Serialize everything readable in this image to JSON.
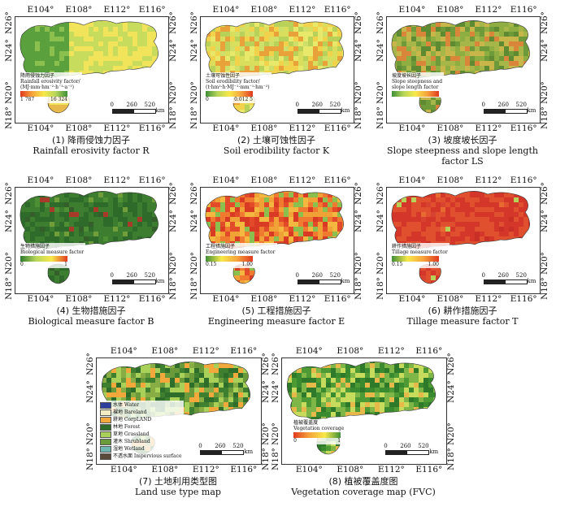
{
  "ticks": {
    "lon": [
      "E104°",
      "E108°",
      "E112°",
      "E116°"
    ],
    "lat": [
      "N26°",
      "N24°",
      "N20°",
      "N18°"
    ]
  },
  "scalebar": {
    "labels": [
      "0",
      "260",
      "520"
    ],
    "unit": "km"
  },
  "panels": [
    {
      "id": "r",
      "caption_cn": "(1) 降雨侵蚀力因子",
      "caption_en": "Rainfall erosivity factor R",
      "legend": {
        "title_cn": "降雨侵蚀力因子",
        "title_en": "Rainfall erosivity factor/",
        "unit": "(MJ·mm·hm⁻²·h⁻¹·a⁻¹)",
        "min": "1 787",
        "max": "16 324"
      },
      "gradient": [
        "#e03a1f",
        "#f6a33c",
        "#f7e84a",
        "#b7d65a",
        "#3f8f38"
      ],
      "fill": "green-yellow"
    },
    {
      "id": "k",
      "caption_cn": "(2) 土壤可蚀性因子",
      "caption_en": "Soil erodibility factor K",
      "legend": {
        "title_cn": "土壤可蚀性因子",
        "title_en": "Soil erodibility factor/",
        "unit": "(t·hm²·h·MJ⁻¹·mm⁻¹·hm⁻²)",
        "min": "0",
        "max": "0.012 5"
      },
      "gradient": [
        "#3f8f38",
        "#b7d65a",
        "#f7e84a",
        "#f6a33c",
        "#e03a1f"
      ],
      "fill": "yellow"
    },
    {
      "id": "ls",
      "caption_cn": "(3) 坡度坡长因子",
      "caption_en": "Slope steepness and slope length factor LS",
      "legend": {
        "title_cn": "坡度坡长因子",
        "title_en": "Slope steepness and",
        "unit": "slope length factor",
        "min": "",
        "max": ""
      },
      "gradient": [
        "#3f8f38",
        "#b7d65a",
        "#f7e84a",
        "#f6a33c",
        "#e03a1f"
      ],
      "fill": "olive"
    },
    {
      "id": "b",
      "caption_cn": "(4) 生物措施因子",
      "caption_en": "Biological measure factor B",
      "legend": {
        "title_cn": "生物措施因子",
        "title_en": "Biological measure factor",
        "unit": "",
        "min": "0",
        "max": "1"
      },
      "gradient": [
        "#2d7a2d",
        "#b7d65a",
        "#f7e84a",
        "#e03a1f"
      ],
      "fill": "darkgreen"
    },
    {
      "id": "e",
      "caption_cn": "(5) 工程措施因子",
      "caption_en": "Engineering measure factor E",
      "legend": {
        "title_cn": "工程措施因子",
        "title_en": "Engineering measure factor",
        "unit": "",
        "min": "0.15",
        "max": "1.00"
      },
      "gradient": [
        "#3f8f38",
        "#f7e84a",
        "#f6a33c",
        "#e03a1f"
      ],
      "fill": "red-mixed"
    },
    {
      "id": "t",
      "caption_cn": "(6) 耕作措施因子",
      "caption_en": "Tillage measure factor T",
      "legend": {
        "title_cn": "耕作措施因子",
        "title_en": "Tillage measure factor",
        "unit": "",
        "min": "0.15",
        "max": "1.00"
      },
      "gradient": [
        "#3f8f38",
        "#f7e84a",
        "#f6a33c",
        "#e03a1f"
      ],
      "fill": "red"
    },
    {
      "id": "lu",
      "caption_cn": "(7) 土地利用类型图",
      "caption_en": "Land use type map",
      "legend": {
        "title_cn": "",
        "title_en": "",
        "unit": "",
        "min": "",
        "max": ""
      },
      "gradient": [],
      "fill": "landuse"
    },
    {
      "id": "fvc",
      "caption_cn": "(8) 植被覆盖度图",
      "caption_en": "Vegetation coverage map (FVC)",
      "legend": {
        "title_cn": "植被覆盖度",
        "title_en": "Vegetation coverage",
        "unit": "",
        "min": "0",
        "max": "1"
      },
      "gradient": [
        "#e03a1f",
        "#f6a33c",
        "#f7e84a",
        "#3f8f38"
      ],
      "fill": "fvc"
    }
  ],
  "landuse_legend": [
    {
      "cn": "水体",
      "en": "Water",
      "color": "#2e3f9e"
    },
    {
      "cn": "裸地",
      "en": "Bareland",
      "color": "#f3ecc2"
    },
    {
      "cn": "耕地",
      "en": "CorpLAND",
      "color": "#f2a83a"
    },
    {
      "cn": "林地",
      "en": "Forest",
      "color": "#2e6e2a"
    },
    {
      "cn": "草地",
      "en": "Grassland",
      "color": "#a9d15a"
    },
    {
      "cn": "灌木",
      "en": "Shrubland",
      "color": "#6a9a3a"
    },
    {
      "cn": "湿地",
      "en": "Wetland",
      "color": "#6fb8b2"
    },
    {
      "cn": "不透水面",
      "en": "Impervious surface",
      "color": "#5a4a3a"
    }
  ],
  "captions_extra": {
    "ls_line2": "slope length factor LS",
    "b_line2": "factor B",
    "e_line2": "factor E"
  }
}
